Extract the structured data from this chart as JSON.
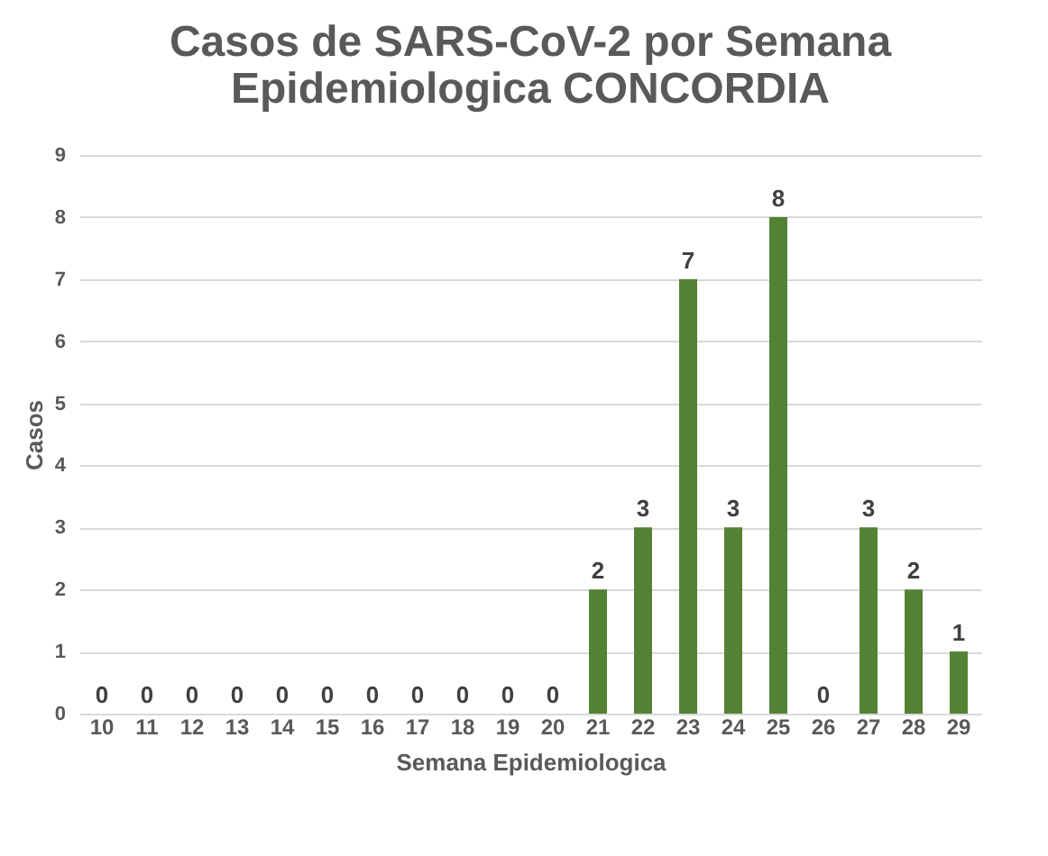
{
  "chart_data": {
    "type": "bar",
    "title": "Casos de SARS-CoV-2 por Semana Epidemiologica CONCORDIA",
    "xlabel": "Semana Epidemiologica",
    "ylabel": "Casos",
    "categories": [
      "10",
      "11",
      "12",
      "13",
      "14",
      "15",
      "16",
      "17",
      "18",
      "19",
      "20",
      "21",
      "22",
      "23",
      "24",
      "25",
      "26",
      "27",
      "28",
      "29"
    ],
    "values": [
      0,
      0,
      0,
      0,
      0,
      0,
      0,
      0,
      0,
      0,
      0,
      2,
      3,
      7,
      3,
      8,
      0,
      3,
      2,
      1
    ],
    "color": "#548235",
    "ylim": [
      0,
      9
    ],
    "yticks": [
      0,
      1,
      2,
      3,
      4,
      5,
      6,
      7,
      8,
      9
    ],
    "grid": "y",
    "data_labels": true
  }
}
